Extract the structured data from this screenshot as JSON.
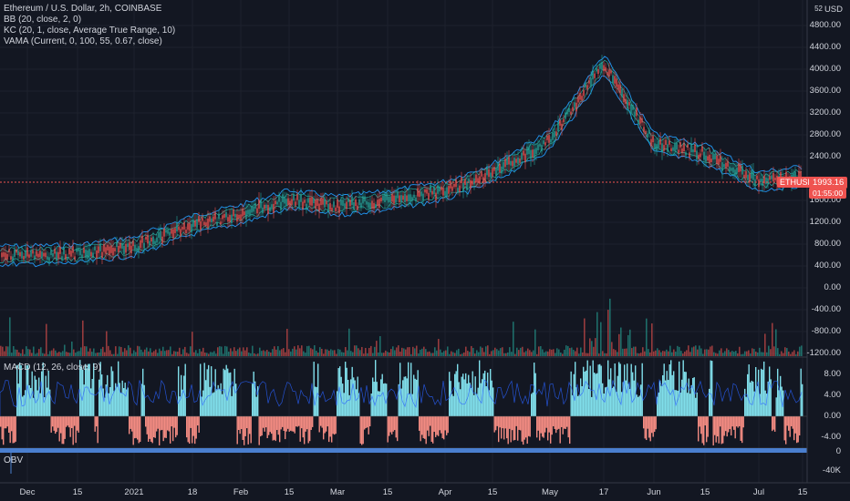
{
  "header": {
    "title": "Ethereum / U.S. Dollar, 2h, COINBASE",
    "indicators": [
      "BB (20, close, 2, 0)",
      "KC (20, 1, close, Average True Range, 10)",
      "VAMA (Current, 0, 100, 55, 0.67, close)"
    ]
  },
  "macd_legend": "MACD (12, 26, close, 9)",
  "obv_legend": "OBV",
  "currency": "USD",
  "currency_prefix": "52",
  "price_axis": [
    "4800.00",
    "4400.00",
    "4000.00",
    "3600.00",
    "3200.00",
    "2800.00",
    "2400.00",
    "1600.00",
    "1200.00",
    "800.00",
    "400.00",
    "0.00",
    "-400.00",
    "-800.00",
    "-1200.00"
  ],
  "macd_axis": [
    "8.00",
    "4.00",
    "0.00",
    "-4.00"
  ],
  "obv_axis": [
    "0",
    "-40K"
  ],
  "x_axis": [
    "Dec",
    "15",
    "2021",
    "18",
    "Feb",
    "15",
    "Mar",
    "15",
    "Apr",
    "15",
    "May",
    "17",
    "Jun",
    "15",
    "Jul",
    "15"
  ],
  "price_badge": {
    "symbol": "ETHUSD",
    "price": "1993.16",
    "countdown": "01:55:00"
  },
  "colors": {
    "up": "#26a69a",
    "down": "#ef5350",
    "band": "#2196f3",
    "macd_up": "#80deea",
    "macd_down": "#f28b82",
    "obv": "#5b8bd6"
  },
  "chart_data": {
    "type": "line",
    "series_name": "ETHUSD",
    "x": [
      "Dec",
      "15",
      "2021",
      "18",
      "Feb",
      "15",
      "Mar",
      "15",
      "Apr",
      "15",
      "May",
      "17",
      "Jun",
      "15",
      "Jul",
      "15"
    ],
    "values": [
      600,
      620,
      760,
      1150,
      1350,
      1620,
      1500,
      1600,
      1780,
      2100,
      2700,
      4100,
      2650,
      2450,
      1950,
      2050
    ],
    "ylim": [
      -1400,
      5200
    ]
  }
}
